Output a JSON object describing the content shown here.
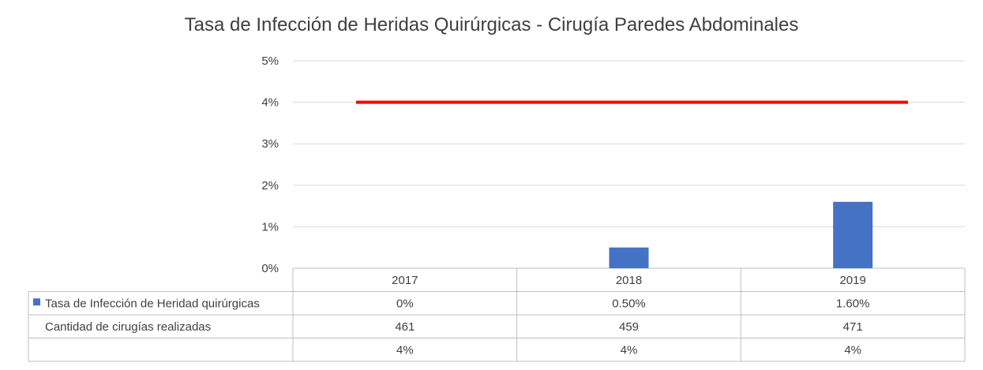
{
  "chart_data": {
    "type": "bar",
    "title": "Tasa de Infección de Heridas Quirúrgicas - Cirugía Paredes Abdominales",
    "categories": [
      "2017",
      "2018",
      "2019"
    ],
    "y_ticks": [
      "0%",
      "1%",
      "2%",
      "3%",
      "4%",
      "5%"
    ],
    "ylim": [
      0,
      5
    ],
    "grid": true,
    "series": [
      {
        "name": "Tasa de Infección de Heridad quirúrgicas",
        "type": "bar",
        "color": "#4472C4",
        "values": [
          0,
          0.5,
          1.6
        ],
        "labels": [
          "0%",
          "0.50%",
          "1.60%"
        ]
      },
      {
        "name": "",
        "type": "line",
        "color": "#FF0000",
        "values": [
          4,
          4,
          4
        ],
        "labels": [
          "4%",
          "4%",
          "4%"
        ]
      }
    ],
    "table_rows": [
      {
        "label": "Tasa de Infección de Heridad quirúrgicas",
        "values": [
          "0%",
          "0.50%",
          "1.60%"
        ],
        "legend_color": "#4472C4"
      },
      {
        "label": "Cantidad de cirugías realizadas",
        "values": [
          "461",
          "459",
          "471"
        ]
      },
      {
        "label": "",
        "values": [
          "4%",
          "4%",
          "4%"
        ]
      }
    ]
  }
}
